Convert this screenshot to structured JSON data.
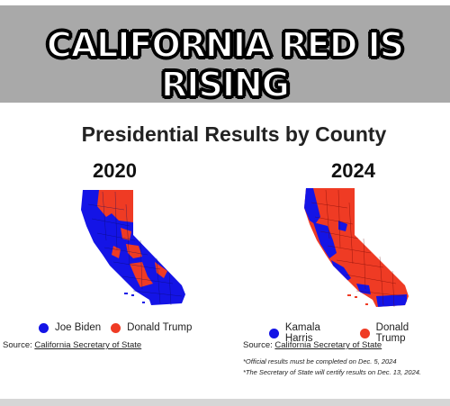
{
  "banner": {
    "title": "CALIFORNIA RED IS RISING"
  },
  "heading": "Presidential Results by County",
  "colors": {
    "democrat": "#1414e6",
    "republican": "#ef3b24",
    "banner_bg": "#a9a9a9"
  },
  "maps": [
    {
      "year": "2020",
      "legend": [
        {
          "label": "Joe Biden",
          "color": "#1414e6"
        },
        {
          "label": "Donald Trump",
          "color": "#ef3b24"
        }
      ],
      "source_prefix": "Source: ",
      "source_link": "California Secretary of State"
    },
    {
      "year": "2024",
      "legend": [
        {
          "label": "Kamala Harris",
          "color": "#1414e6"
        },
        {
          "label": "Donald Trump",
          "color": "#ef3b24"
        }
      ],
      "source_prefix": "Source: ",
      "source_link": "California Secretary of State",
      "notes": [
        "*Official results must be completed on Dec. 5, 2024",
        "*The Secretary of State will certify results on Dec. 13, 2024."
      ]
    }
  ]
}
